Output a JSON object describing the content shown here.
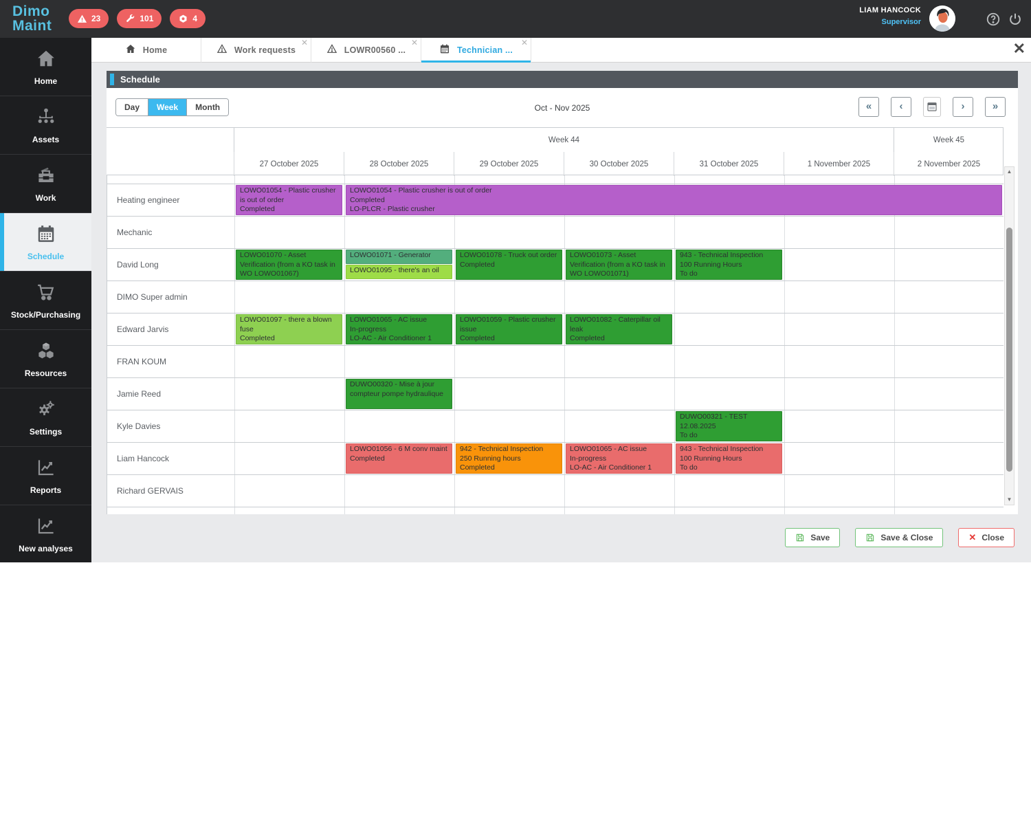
{
  "topbar": {
    "logo_line1": "Dimo",
    "logo_line2": "Maint",
    "badges": [
      {
        "icon": "warning-triangle",
        "count": "23"
      },
      {
        "icon": "wrench",
        "count": "101"
      },
      {
        "icon": "nut",
        "count": "4"
      }
    ],
    "user": {
      "name": "LIAM HANCOCK",
      "role": "Supervisor"
    }
  },
  "tabs": [
    {
      "label": "Home",
      "icon": "home",
      "closeable": false,
      "active": false
    },
    {
      "label": "Work requests",
      "icon": "warning",
      "closeable": true,
      "active": false
    },
    {
      "label": "LOWR00560 ...",
      "icon": "warning",
      "closeable": true,
      "active": false
    },
    {
      "label": "Technician ...",
      "icon": "calendar",
      "closeable": true,
      "active": true
    }
  ],
  "sidebar": {
    "items": [
      {
        "label": "Home",
        "icon": "home"
      },
      {
        "label": "Assets",
        "icon": "sitemap"
      },
      {
        "label": "Work",
        "icon": "toolbox"
      },
      {
        "label": "Schedule",
        "icon": "calendar",
        "active": true
      },
      {
        "label": "Stock/Purchasing",
        "icon": "cart"
      },
      {
        "label": "Resources",
        "icon": "cubes"
      },
      {
        "label": "Settings",
        "icon": "gears"
      },
      {
        "label": "Reports",
        "icon": "chart"
      },
      {
        "label": "New analyses",
        "icon": "chart"
      }
    ]
  },
  "schedule": {
    "title": "Schedule",
    "views": [
      {
        "label": "Day",
        "active": false
      },
      {
        "label": "Week",
        "active": true
      },
      {
        "label": "Month",
        "active": false
      }
    ],
    "period": "Oct - Nov 2025",
    "nav": {
      "first": "«",
      "prev": "‹",
      "next": "›",
      "last": "»"
    }
  },
  "calendar": {
    "week_groups": [
      {
        "label": "Week 44",
        "start": 0,
        "span": 6
      },
      {
        "label": "Week 45",
        "start": 6,
        "span": 1
      }
    ],
    "days": [
      "27 October 2025",
      "28 October 2025",
      "29 October 2025",
      "30 October 2025",
      "31 October 2025",
      "1 November 2025",
      "2 November 2025"
    ],
    "resources": [
      "Heating engineer",
      "Mechanic",
      "David Long",
      "DIMO Super admin",
      "Edward Jarvis",
      "FRAN KOUM",
      "Jamie Reed",
      "Kyle Davies",
      "Liam Hancock",
      "Richard GERVAIS"
    ],
    "colors": {
      "purple": {
        "fill": "#b55fca",
        "border": "#a44cb9"
      },
      "green": {
        "fill": "#2f9e33",
        "border": "#27862b"
      },
      "seagreen": {
        "fill": "#53ae7d",
        "border": "#46976c"
      },
      "lime": {
        "fill": "#9edc47",
        "border": "#8cc93e"
      },
      "lightgreen": {
        "fill": "#8ed051",
        "border": "#7cbd45"
      },
      "orange": {
        "fill": "#f9930a",
        "border": "#df8309"
      },
      "salmon": {
        "fill": "#e96c6c",
        "border": "#d95f5f"
      }
    },
    "events": [
      {
        "resource": 0,
        "day": 0,
        "span": 1,
        "color": "purple",
        "text": "LOWO01054 - Plastic crusher is out of order\nCompleted"
      },
      {
        "resource": 0,
        "day": 1,
        "span": 6,
        "color": "purple",
        "text": "LOWO01054 - Plastic crusher is out of order\nCompleted\nLO-PLCR - Plastic crusher"
      },
      {
        "resource": 2,
        "day": 0,
        "span": 1,
        "color": "green",
        "text": "LOWO01070 - Asset Verification (from a KO task in WO LOWO01067)"
      },
      {
        "resource": 2,
        "day": 1,
        "span": 1,
        "color": "seagreen",
        "stack": 0,
        "text": "LOWO01071 - Generator"
      },
      {
        "resource": 2,
        "day": 1,
        "span": 1,
        "color": "lime",
        "stack": 1,
        "text": "LOWO01095 - there's an oil"
      },
      {
        "resource": 2,
        "day": 2,
        "span": 1,
        "color": "green",
        "text": "LOWO01078 - Truck out order\nCompleted"
      },
      {
        "resource": 2,
        "day": 3,
        "span": 1,
        "color": "green",
        "text": "LOWO01073 - Asset Verification (from a KO task in WO LOWO01071)"
      },
      {
        "resource": 2,
        "day": 4,
        "span": 1,
        "color": "green",
        "text": "943 - Technical Inspection\n100 Running Hours\nTo do"
      },
      {
        "resource": 4,
        "day": 0,
        "span": 1,
        "color": "lightgreen",
        "text": "LOWO01097 - there a blown fuse\nCompleted"
      },
      {
        "resource": 4,
        "day": 1,
        "span": 1,
        "color": "green",
        "text": "LOWO01065 - AC issue\nIn-progress\nLO-AC - Air Conditioner 1"
      },
      {
        "resource": 4,
        "day": 2,
        "span": 1,
        "color": "green",
        "text": "LOWO01059 - Plastic crusher issue\nCompleted"
      },
      {
        "resource": 4,
        "day": 3,
        "span": 1,
        "color": "green",
        "text": "LOWO01082 - Caterpillar oil leak\nCompleted"
      },
      {
        "resource": 6,
        "day": 1,
        "span": 1,
        "color": "green",
        "text": "DUWO00320 - Mise à jour compteur pompe hydraulique"
      },
      {
        "resource": 7,
        "day": 4,
        "span": 1,
        "color": "green",
        "text": "DUWO00321 - TEST\n12.08.2025\nTo do"
      },
      {
        "resource": 8,
        "day": 1,
        "span": 1,
        "color": "salmon",
        "text": "LOWO01056 - 6 M conv maint\nCompleted"
      },
      {
        "resource": 8,
        "day": 2,
        "span": 1,
        "color": "orange",
        "text": "942 - Technical Inspection\n250 Running hours\nCompleted"
      },
      {
        "resource": 8,
        "day": 3,
        "span": 1,
        "color": "salmon",
        "text": "LOWO01065 - AC issue\nIn-progress\nLO-AC - Air Conditioner 1"
      },
      {
        "resource": 8,
        "day": 4,
        "span": 1,
        "color": "salmon",
        "text": "943 - Technical Inspection\n100 Running Hours\nTo do"
      }
    ]
  },
  "actions": [
    {
      "label": "Save",
      "type": "save"
    },
    {
      "label": "Save & Close",
      "type": "save"
    },
    {
      "label": "Close",
      "type": "close"
    }
  ]
}
